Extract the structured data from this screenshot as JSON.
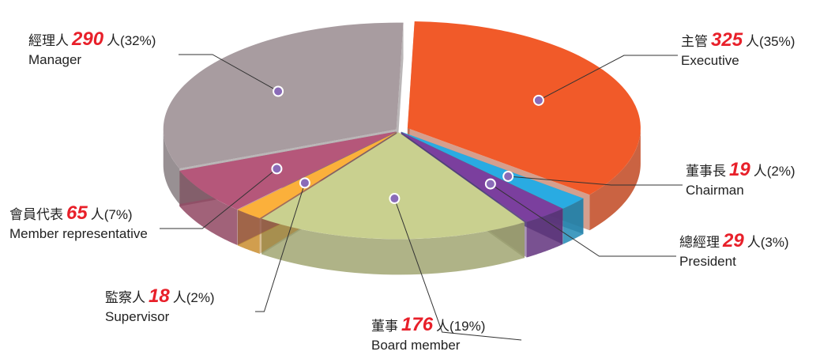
{
  "chart_data": {
    "type": "pie",
    "categories": [
      "主管",
      "董事長",
      "總經理",
      "董事",
      "監察人",
      "會員代表",
      "經理人"
    ],
    "categories_en": [
      "Executive",
      "Chairman",
      "President",
      "Board member",
      "Supervisor",
      "Member representative",
      "Manager"
    ],
    "values": [
      325,
      19,
      29,
      176,
      18,
      65,
      290
    ],
    "unit": "人",
    "percent_labels": [
      "(35%)",
      "(2%)",
      "(3%)",
      "(19%)",
      "(2%)",
      "(7%)",
      "(32%)"
    ],
    "colors": [
      "#f15a29",
      "#29abe2",
      "#7b3f9e",
      "#c9d08f",
      "#fbb03b",
      "#b5577a",
      "#a89ca0"
    ]
  }
}
